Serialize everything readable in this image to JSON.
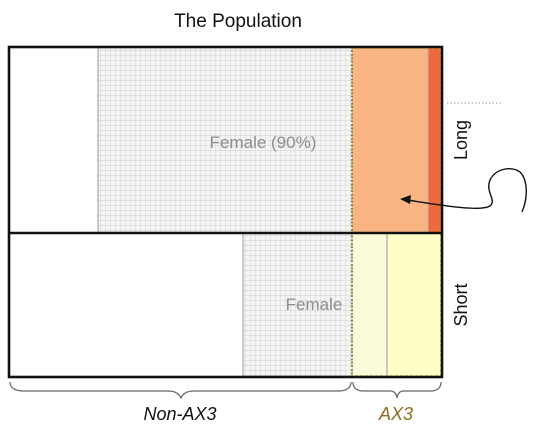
{
  "title": "The Population",
  "labels": {
    "female_top": "Female (90%)",
    "female_bottom": "Female",
    "long": "Long",
    "short": "Short",
    "non_ax3": "Non-AX3",
    "ax3": "AX3"
  },
  "colors": {
    "frame": "#111111",
    "grid_fill": "#f3f3f3",
    "grid_line": "#c8c8c8",
    "ax3_long_fill": "#f8b482",
    "ax3_long_edge": "#ee6a3c",
    "ax3_short_fill": "#fefec6",
    "ax3_short_border": "#c9c04a",
    "ax3_text": "#8a6d1e",
    "female_text": "#8c8c8c"
  }
}
